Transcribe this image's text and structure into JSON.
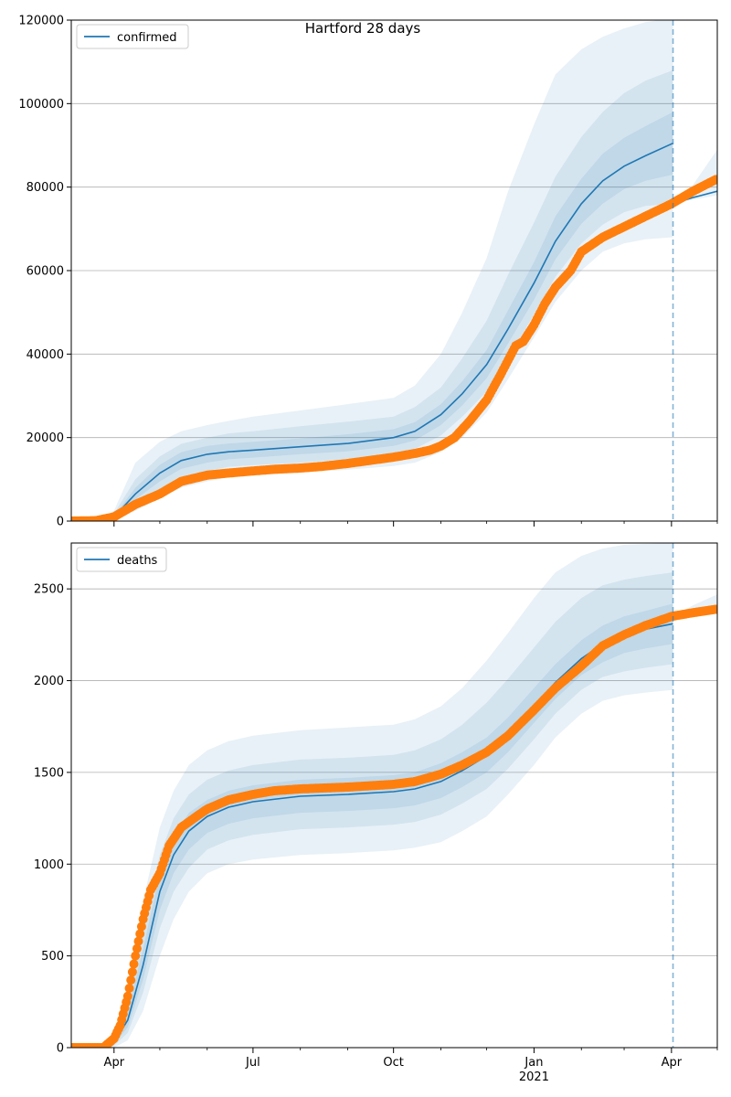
{
  "figure": {
    "title": "Hartford 28 days",
    "x_tick_labels": [
      {
        "date": "2020-04-01",
        "label": "Apr",
        "sub": ""
      },
      {
        "date": "2020-07-01",
        "label": "Jul",
        "sub": ""
      },
      {
        "date": "2020-10-01",
        "label": "Oct",
        "sub": ""
      },
      {
        "date": "2021-01-01",
        "label": "Jan",
        "sub": "2021"
      },
      {
        "date": "2021-04-01",
        "label": "Apr",
        "sub": ""
      }
    ],
    "x_minor_ticks": [
      "2020-05-01",
      "2020-06-01",
      "2020-08-01",
      "2020-09-01",
      "2020-11-01",
      "2020-12-01",
      "2021-02-01",
      "2021-03-01",
      "2021-05-01"
    ],
    "xlim": [
      "2020-03-04",
      "2021-05-01"
    ],
    "forecast_start": "2021-04-02",
    "colors": {
      "model": "#1f77b4",
      "observed": "#ff7f0e",
      "band": "#1f77b4",
      "grid": "#b0b0b0",
      "vline": "#1f77b4"
    }
  },
  "chart_data": [
    {
      "type": "line",
      "name": "confirmed-panel",
      "legend": "confirmed",
      "legend_position": "top-left",
      "ylim": [
        0,
        120000
      ],
      "yticks": [
        0,
        20000,
        40000,
        60000,
        80000,
        100000,
        120000
      ],
      "y_grid": true,
      "model": {
        "x": [
          "2020-03-20",
          "2020-04-01",
          "2020-04-15",
          "2020-05-01",
          "2020-05-15",
          "2020-06-01",
          "2020-06-15",
          "2020-07-01",
          "2020-08-01",
          "2020-09-01",
          "2020-10-01",
          "2020-10-15",
          "2020-11-01",
          "2020-11-15",
          "2020-12-01",
          "2020-12-15",
          "2021-01-01",
          "2021-01-15",
          "2021-02-01",
          "2021-02-15",
          "2021-03-01",
          "2021-03-15",
          "2021-04-02"
        ],
        "y": [
          0,
          1000,
          6500,
          11500,
          14500,
          16000,
          16600,
          17000,
          17800,
          18600,
          20000,
          21500,
          25500,
          30500,
          37500,
          46000,
          57000,
          67000,
          76000,
          81500,
          85000,
          87500,
          90500
        ]
      },
      "bands": [
        {
          "level": "outer",
          "lower": [
            0,
            200,
            2500,
            5500,
            8000,
            9500,
            10500,
            11000,
            11600,
            12300,
            13200,
            14000,
            16500,
            20000,
            26000,
            34000,
            44000,
            52500,
            60000,
            64500,
            66500,
            67500,
            68000
          ],
          "upper": [
            0,
            2500,
            14000,
            19000,
            21500,
            23000,
            24000,
            25000,
            26500,
            28000,
            29500,
            32500,
            40000,
            50000,
            63000,
            79000,
            95000,
            107000,
            113000,
            116000,
            118000,
            119500,
            120500
          ]
        },
        {
          "level": "middle",
          "lower": [
            0,
            500,
            4000,
            7500,
            10500,
            12000,
            13000,
            13400,
            14000,
            14800,
            16000,
            17300,
            20500,
            25000,
            31000,
            39000,
            49500,
            58500,
            66500,
            71000,
            74000,
            75500,
            76000
          ],
          "upper": [
            0,
            1800,
            10000,
            15500,
            18500,
            20000,
            21000,
            21500,
            22700,
            23800,
            25000,
            27300,
            32000,
            39000,
            48000,
            59000,
            71500,
            82500,
            92000,
            98000,
            102500,
            105500,
            108000
          ]
        },
        {
          "level": "inner",
          "lower": [
            0,
            700,
            5200,
            9500,
            12500,
            14000,
            14800,
            15200,
            16000,
            16700,
            18000,
            19300,
            23000,
            27700,
            34200,
            42500,
            53000,
            62700,
            71200,
            76000,
            79500,
            81500,
            83000
          ],
          "upper": [
            0,
            1300,
            8000,
            13500,
            16500,
            18000,
            18600,
            19000,
            19800,
            20800,
            22000,
            23700,
            28000,
            33500,
            41000,
            50500,
            62000,
            73000,
            82000,
            88000,
            91800,
            94600,
            98000
          ]
        }
      ],
      "continuation": {
        "x": [
          "2021-04-02",
          "2021-04-15",
          "2021-05-01"
        ],
        "y": [
          76000,
          77500,
          79000
        ],
        "lower": [
          76000,
          77000,
          78000
        ],
        "upper": [
          76000,
          80500,
          89000
        ]
      },
      "observed": {
        "x": [
          "2020-03-04",
          "2020-03-20",
          "2020-04-01",
          "2020-04-15",
          "2020-05-01",
          "2020-05-15",
          "2020-06-01",
          "2020-06-15",
          "2020-07-01",
          "2020-07-15",
          "2020-08-01",
          "2020-08-15",
          "2020-09-01",
          "2020-09-15",
          "2020-10-01",
          "2020-10-15",
          "2020-10-25",
          "2020-11-01",
          "2020-11-10",
          "2020-11-20",
          "2020-12-01",
          "2020-12-10",
          "2020-12-20",
          "2020-12-25",
          "2021-01-01",
          "2021-01-08",
          "2021-01-15",
          "2021-01-25",
          "2021-02-01",
          "2021-02-15",
          "2021-03-01",
          "2021-03-15",
          "2021-04-01",
          "2021-04-15",
          "2021-05-01"
        ],
        "y": [
          0,
          100,
          1000,
          4000,
          6500,
          9500,
          11000,
          11500,
          12000,
          12400,
          12700,
          13100,
          13800,
          14500,
          15300,
          16200,
          17000,
          18000,
          20000,
          24000,
          29000,
          35000,
          42000,
          43000,
          47000,
          52000,
          56000,
          60000,
          64500,
          68000,
          70500,
          73000,
          76000,
          79000,
          82000
        ]
      }
    },
    {
      "type": "line",
      "name": "deaths-panel",
      "legend": "deaths",
      "legend_position": "top-left",
      "ylim": [
        0,
        2750
      ],
      "yticks": [
        0,
        500,
        1000,
        1500,
        2000,
        2500
      ],
      "y_grid": true,
      "model": {
        "x": [
          "2020-03-04",
          "2020-03-25",
          "2020-04-01",
          "2020-04-10",
          "2020-04-20",
          "2020-05-01",
          "2020-05-10",
          "2020-05-20",
          "2020-06-01",
          "2020-06-15",
          "2020-07-01",
          "2020-08-01",
          "2020-09-01",
          "2020-10-01",
          "2020-10-15",
          "2020-11-01",
          "2020-11-15",
          "2020-12-01",
          "2020-12-15",
          "2021-01-01",
          "2021-01-15",
          "2021-02-01",
          "2021-02-15",
          "2021-03-01",
          "2021-03-15",
          "2021-04-02"
        ],
        "y": [
          0,
          0,
          30,
          150,
          450,
          850,
          1050,
          1180,
          1260,
          1310,
          1340,
          1370,
          1380,
          1395,
          1410,
          1450,
          1510,
          1590,
          1700,
          1860,
          1990,
          2120,
          2200,
          2250,
          2280,
          2310
        ]
      },
      "bands": [
        {
          "level": "outer",
          "lower": [
            0,
            0,
            0,
            40,
            200,
            500,
            700,
            850,
            950,
            1000,
            1025,
            1050,
            1060,
            1075,
            1090,
            1120,
            1180,
            1260,
            1380,
            1540,
            1690,
            1820,
            1890,
            1920,
            1935,
            1950
          ],
          "upper": [
            0,
            0,
            80,
            350,
            800,
            1200,
            1400,
            1540,
            1620,
            1670,
            1700,
            1730,
            1745,
            1760,
            1790,
            1860,
            1960,
            2110,
            2260,
            2450,
            2590,
            2680,
            2720,
            2740,
            2745,
            2750
          ]
        },
        {
          "level": "middle",
          "lower": [
            0,
            0,
            10,
            80,
            300,
            650,
            850,
            980,
            1080,
            1130,
            1160,
            1190,
            1200,
            1215,
            1230,
            1270,
            1330,
            1410,
            1520,
            1680,
            1820,
            1950,
            2020,
            2050,
            2070,
            2090
          ],
          "upper": [
            0,
            0,
            55,
            250,
            650,
            1050,
            1250,
            1380,
            1460,
            1510,
            1540,
            1570,
            1580,
            1595,
            1620,
            1680,
            1760,
            1880,
            2010,
            2180,
            2320,
            2450,
            2520,
            2550,
            2570,
            2590
          ]
        },
        {
          "level": "inner",
          "lower": [
            0,
            0,
            18,
            110,
            370,
            750,
            950,
            1080,
            1170,
            1220,
            1250,
            1280,
            1290,
            1305,
            1320,
            1360,
            1420,
            1500,
            1610,
            1770,
            1900,
            2030,
            2100,
            2150,
            2175,
            2200
          ],
          "upper": [
            0,
            0,
            42,
            200,
            540,
            950,
            1150,
            1280,
            1350,
            1400,
            1430,
            1460,
            1470,
            1485,
            1500,
            1550,
            1610,
            1690,
            1800,
            1960,
            2090,
            2220,
            2300,
            2350,
            2380,
            2420
          ]
        }
      ],
      "continuation": {
        "x": [
          "2021-04-02",
          "2021-04-15",
          "2021-05-01"
        ],
        "y": [
          2350,
          2365,
          2385
        ],
        "lower": [
          2350,
          2360,
          2370
        ],
        "upper": [
          2350,
          2410,
          2470
        ]
      },
      "observed": {
        "x": [
          "2020-03-04",
          "2020-03-25",
          "2020-04-01",
          "2020-04-05",
          "2020-04-10",
          "2020-04-15",
          "2020-04-20",
          "2020-04-25",
          "2020-05-01",
          "2020-05-07",
          "2020-05-15",
          "2020-05-25",
          "2020-06-01",
          "2020-06-15",
          "2020-07-01",
          "2020-07-15",
          "2020-08-01",
          "2020-09-01",
          "2020-10-01",
          "2020-10-15",
          "2020-11-01",
          "2020-11-15",
          "2020-12-01",
          "2020-12-15",
          "2021-01-01",
          "2021-01-15",
          "2021-02-01",
          "2021-02-15",
          "2021-03-01",
          "2021-03-15",
          "2021-04-01",
          "2021-04-15",
          "2021-05-01"
        ],
        "y": [
          0,
          0,
          50,
          120,
          280,
          500,
          700,
          860,
          950,
          1100,
          1200,
          1260,
          1300,
          1350,
          1380,
          1400,
          1410,
          1420,
          1435,
          1450,
          1490,
          1540,
          1610,
          1700,
          1840,
          1960,
          2080,
          2190,
          2250,
          2300,
          2350,
          2370,
          2390
        ]
      }
    }
  ]
}
